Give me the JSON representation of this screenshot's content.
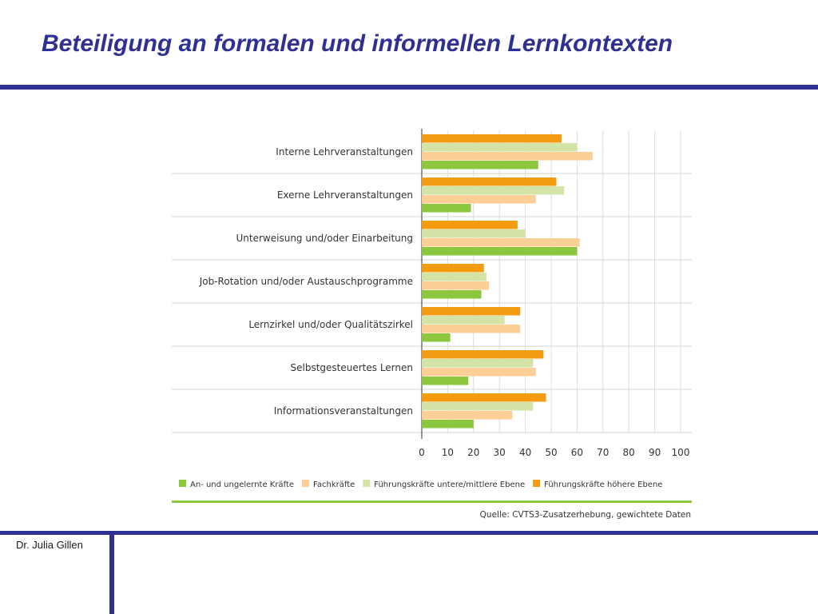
{
  "slide": {
    "title": "Beteiligung an formalen und informellen Lernkontexten",
    "author": "Dr. Julia Gillen"
  },
  "colors": {
    "accent": "#2e3192",
    "chart_green_line": "#8dc63f"
  },
  "chart_data": {
    "type": "bar",
    "orientation": "horizontal",
    "categories": [
      "Interne Lehrveranstaltungen",
      "Exerne Lehrveranstaltungen",
      "Unterweisung und/oder Einarbeitung",
      "Job-Rotation und/oder Austauschprogramme",
      "Lernzirkel und/oder Qualitätszirkel",
      "Selbstgesteuertes Lernen",
      "Informationsveranstaltungen"
    ],
    "series": [
      {
        "name": "Führungskräfte höhere Ebene",
        "color": "#f39c12",
        "values": [
          54,
          52,
          37,
          24,
          38,
          47,
          48
        ]
      },
      {
        "name": "Führungskräfte untere/mittlere Ebene",
        "color": "#d3e4a6",
        "values": [
          60,
          55,
          40,
          25,
          32,
          43,
          43
        ]
      },
      {
        "name": "Fachkräfte",
        "color": "#fbcf96",
        "values": [
          66,
          44,
          61,
          26,
          38,
          44,
          35
        ]
      },
      {
        "name": "An- und ungelernte Kräfte",
        "color": "#8dc63f",
        "values": [
          45,
          19,
          60,
          23,
          11,
          18,
          20
        ]
      }
    ],
    "legend_order": [
      "An- und ungelernte Kräfte",
      "Fachkräfte",
      "Führungskräfte untere/mittlere Ebene",
      "Führungskräfte höhere Ebene"
    ],
    "xlim": [
      0,
      100
    ],
    "xticks": [
      "0",
      "10",
      "20",
      "30",
      "40",
      "50",
      "60",
      "70",
      "80",
      "90",
      "100"
    ],
    "grid": true,
    "legend_position": "bottom",
    "source": "Quelle: CVTS3-Zusatzerhebung, gewichtete Daten"
  }
}
